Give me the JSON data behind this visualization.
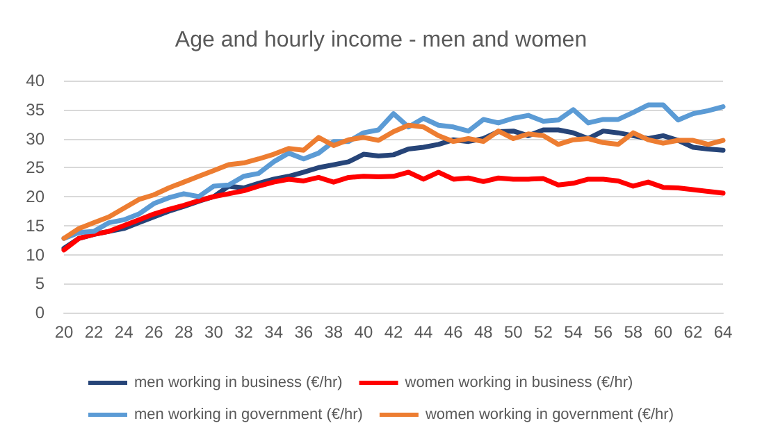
{
  "chart_data": {
    "type": "line",
    "title": "Age and hourly income - men and women",
    "x": [
      20,
      21,
      22,
      23,
      24,
      25,
      26,
      27,
      28,
      29,
      30,
      31,
      32,
      33,
      34,
      35,
      36,
      37,
      38,
      39,
      40,
      41,
      42,
      43,
      44,
      45,
      46,
      47,
      48,
      49,
      50,
      51,
      52,
      53,
      54,
      55,
      56,
      57,
      58,
      59,
      60,
      61,
      62,
      63,
      64
    ],
    "series": [
      {
        "name": "men working in business (€/hr)",
        "color": "#264478",
        "values": [
          11.1,
          12.8,
          13.5,
          14,
          14.5,
          15.5,
          16.5,
          17.5,
          18.3,
          19.2,
          20,
          21.8,
          21.5,
          22.3,
          23,
          23.5,
          24.2,
          25,
          25.5,
          26,
          27.3,
          27,
          27.2,
          28.2,
          28.5,
          29,
          29.8,
          29.5,
          30,
          31.2,
          31.3,
          30.5,
          31.5,
          31.5,
          31,
          30,
          31.3,
          31,
          30.5,
          30,
          30.5,
          29.7,
          28.5,
          28.2,
          28
        ]
      },
      {
        "name": "women working in business (€/hr)",
        "color": "#ff0000",
        "values": [
          10.8,
          12.8,
          13.5,
          14,
          15,
          16,
          17,
          17.8,
          18.5,
          19.3,
          20,
          20.5,
          21,
          21.8,
          22.5,
          23,
          22.7,
          23.3,
          22.5,
          23.3,
          23.5,
          23.4,
          23.5,
          24.2,
          23,
          24.2,
          23,
          23.2,
          22.6,
          23.2,
          23,
          23,
          23.1,
          22,
          22.3,
          23,
          23,
          22.7,
          21.8,
          22.5,
          21.6,
          21.5,
          21.2,
          20.9,
          20.6
        ]
      },
      {
        "name": "men working in government (€/hr)",
        "color": "#5b9bd5",
        "values": [
          12.8,
          13.8,
          14,
          15.5,
          16,
          17,
          18.8,
          19.8,
          20.5,
          20,
          21.8,
          22,
          23.5,
          24,
          26,
          27.5,
          26.5,
          27.5,
          29.5,
          29.5,
          31,
          31.5,
          34.3,
          32,
          33.5,
          32.3,
          32,
          31.3,
          33.3,
          32.7,
          33.5,
          34,
          33,
          33.2,
          35,
          32.7,
          33.3,
          33.3,
          34.5,
          35.8,
          35.8,
          33.2,
          34.3,
          34.8,
          35.5
        ]
      },
      {
        "name": "women working in government (€/hr)",
        "color": "#ed7d31",
        "values": [
          12.8,
          14.5,
          15.5,
          16.5,
          18,
          19.5,
          20.3,
          21.5,
          22.5,
          23.5,
          24.5,
          25.5,
          25.8,
          26.5,
          27.3,
          28.3,
          28,
          30.2,
          28.8,
          29.8,
          30.2,
          29.7,
          31.2,
          32.3,
          32,
          30.5,
          29.5,
          30,
          29.5,
          31.3,
          30,
          30.8,
          30.5,
          29,
          29.8,
          30,
          29.3,
          29,
          31,
          29.8,
          29.2,
          29.7,
          29.7,
          29,
          29.7
        ]
      }
    ],
    "xlim": [
      20,
      64
    ],
    "xticks": [
      20,
      22,
      24,
      26,
      28,
      30,
      32,
      34,
      36,
      38,
      40,
      42,
      44,
      46,
      48,
      50,
      52,
      54,
      56,
      58,
      60,
      62,
      64
    ],
    "ylim": [
      0,
      40
    ],
    "yticks": [
      0,
      5,
      10,
      15,
      20,
      25,
      30,
      35,
      40
    ],
    "grid": "y",
    "legend": "bottom",
    "marker": "none",
    "line_style": "solid"
  }
}
